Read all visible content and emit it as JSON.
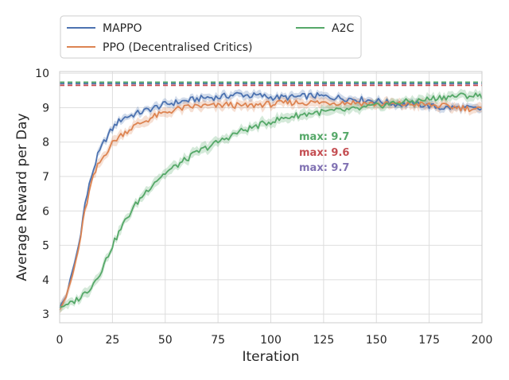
{
  "chart_data": {
    "type": "line",
    "title": "",
    "xlabel": "Iteration",
    "ylabel": "Average Reward per Day",
    "xlim": [
      0,
      200
    ],
    "ylim": [
      2.75,
      10.05
    ],
    "xticks": [
      0,
      25,
      50,
      75,
      100,
      125,
      150,
      175,
      200
    ],
    "yticks": [
      3,
      4,
      5,
      6,
      7,
      8,
      9,
      10
    ],
    "grid": true,
    "legend_placement": "top-left, outside above plot, 2 columns",
    "series": [
      {
        "name": "MAPPO",
        "color": "#4c72b0",
        "x": [
          0,
          3,
          6,
          9,
          12,
          15,
          18,
          21,
          24,
          27,
          30,
          35,
          40,
          45,
          50,
          55,
          60,
          65,
          70,
          75,
          80,
          85,
          90,
          95,
          100,
          110,
          120,
          130,
          140,
          150,
          160,
          170,
          180,
          190,
          200
        ],
        "y": [
          3.2,
          3.5,
          4.2,
          5.0,
          6.2,
          7.0,
          7.6,
          8.0,
          8.3,
          8.55,
          8.7,
          8.8,
          8.9,
          9.0,
          9.1,
          9.15,
          9.2,
          9.25,
          9.3,
          9.3,
          9.35,
          9.4,
          9.35,
          9.35,
          9.3,
          9.3,
          9.35,
          9.3,
          9.25,
          9.2,
          9.1,
          9.1,
          9.0,
          9.0,
          8.95
        ],
        "band": 0.12
      },
      {
        "name": "PPO (Decentralised Critics)",
        "color": "#dd8452",
        "x": [
          0,
          3,
          6,
          9,
          12,
          15,
          18,
          21,
          24,
          27,
          30,
          35,
          40,
          45,
          50,
          55,
          60,
          65,
          70,
          75,
          80,
          85,
          90,
          95,
          100,
          110,
          120,
          130,
          140,
          150,
          160,
          170,
          180,
          190,
          200
        ],
        "y": [
          3.15,
          3.5,
          4.1,
          4.9,
          6.0,
          6.8,
          7.3,
          7.6,
          7.9,
          8.1,
          8.25,
          8.45,
          8.6,
          8.75,
          8.85,
          8.95,
          9.0,
          9.05,
          9.05,
          9.05,
          9.1,
          9.05,
          9.05,
          9.1,
          9.1,
          9.15,
          9.15,
          9.15,
          9.15,
          9.1,
          9.1,
          9.1,
          9.05,
          9.0,
          8.95
        ],
        "band": 0.15
      },
      {
        "name": "A2C",
        "color": "#55a868",
        "x": [
          0,
          5,
          10,
          15,
          20,
          25,
          30,
          35,
          40,
          45,
          50,
          55,
          60,
          65,
          70,
          75,
          80,
          85,
          90,
          95,
          100,
          110,
          120,
          130,
          140,
          150,
          160,
          170,
          180,
          190,
          200
        ],
        "y": [
          3.2,
          3.3,
          3.5,
          3.8,
          4.3,
          5.0,
          5.6,
          6.1,
          6.5,
          6.85,
          7.1,
          7.3,
          7.5,
          7.7,
          7.85,
          8.0,
          8.15,
          8.3,
          8.4,
          8.5,
          8.6,
          8.75,
          8.85,
          8.9,
          8.95,
          9.05,
          9.15,
          9.2,
          9.3,
          9.35,
          9.35
        ],
        "band": 0.15
      }
    ],
    "reference_lines": [
      {
        "series": "MAPPO",
        "y": 9.7,
        "color": "#4c72b0",
        "style": "dashed"
      },
      {
        "series": "PPO (Decentralised Critics)",
        "y": 9.65,
        "color": "#c44e52",
        "style": "dashed"
      },
      {
        "series": "A2C",
        "y": 9.74,
        "color": "#55a868",
        "style": "dashed"
      }
    ],
    "annotations": [
      {
        "text": "max: 9.7",
        "color": "#55a868"
      },
      {
        "text": "max: 9.6",
        "color": "#c44e52"
      },
      {
        "text": "max: 9.7",
        "color": "#8172b3"
      }
    ]
  }
}
